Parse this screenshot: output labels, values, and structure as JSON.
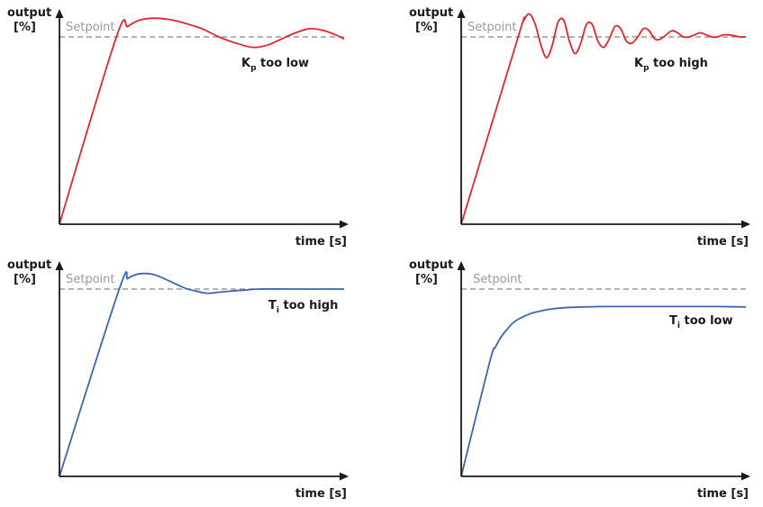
{
  "colors": {
    "axis": "#1a1a1a",
    "setpoint": "#9a9a9a",
    "red_series": "#e8242c",
    "blue_series": "#3a66b5",
    "background": "#ffffff"
  },
  "chart_data": [
    {
      "type": "line",
      "ylabel_line1": "output",
      "ylabel_line2": "[%]",
      "xlabel": "time [s]",
      "setpoint_label": "Setpoint",
      "annotation_main": "K",
      "annotation_sub": "p",
      "annotation_rest": " too low",
      "setpoint": 90,
      "ylim": [
        0,
        105
      ],
      "xlim": [
        0,
        100
      ],
      "series": [
        {
          "color": "red",
          "x": [
            0,
            20,
            24,
            28,
            33,
            38,
            43,
            50,
            56,
            62,
            68,
            73,
            78,
            83,
            88,
            93,
            97,
            100
          ],
          "y": [
            0,
            90,
            95,
            98,
            99,
            98.5,
            97,
            94,
            90,
            87,
            85,
            86,
            89,
            92,
            94,
            93,
            91,
            89
          ]
        }
      ]
    },
    {
      "type": "line",
      "ylabel_line1": "output",
      "ylabel_line2": "[%]",
      "xlabel": "time [s]",
      "setpoint_label": "Setpoint",
      "annotation_main": "K",
      "annotation_sub": "p",
      "annotation_rest": " too high",
      "setpoint": 90,
      "ylim": [
        0,
        105
      ],
      "xlim": [
        0,
        100
      ],
      "series": [
        {
          "color": "red",
          "x": [
            0,
            20,
            22,
            24,
            26,
            28,
            30,
            32,
            34,
            36,
            38,
            40,
            42,
            44,
            46,
            48,
            50,
            52,
            54,
            56,
            58,
            60,
            62,
            64,
            66,
            68,
            70,
            72,
            74,
            76,
            78,
            80,
            82,
            84,
            86,
            88,
            90,
            92,
            94,
            96,
            98,
            100
          ],
          "y": [
            0,
            90,
            98,
            101,
            96,
            86,
            80,
            86,
            97,
            98,
            88,
            82,
            87,
            96,
            96,
            88,
            85,
            89,
            95,
            94,
            88,
            87,
            90,
            94,
            93,
            89,
            89,
            91,
            93,
            92,
            90,
            90,
            91,
            92,
            91,
            90,
            90,
            91,
            91,
            90.5,
            90,
            90
          ]
        }
      ]
    },
    {
      "type": "line",
      "ylabel_line1": "output",
      "ylabel_line2": "[%]",
      "xlabel": "time [s]",
      "setpoint_label": "Setpoint",
      "annotation_main": "T",
      "annotation_sub": "i",
      "annotation_rest": " too high",
      "setpoint": 90,
      "ylim": [
        0,
        105
      ],
      "xlim": [
        0,
        100
      ],
      "series": [
        {
          "color": "blue",
          "x": [
            0,
            21,
            24,
            27,
            30,
            33,
            36,
            40,
            44,
            48,
            52,
            56,
            60,
            65,
            70,
            80,
            90,
            100
          ],
          "y": [
            0,
            90,
            95,
            97,
            97.5,
            97,
            95.5,
            93,
            90.5,
            89,
            88,
            88.5,
            89,
            89.5,
            90,
            90,
            90,
            90
          ]
        }
      ]
    },
    {
      "type": "line",
      "ylabel_line1": "output",
      "ylabel_line2": "[%]",
      "xlabel": "time [s]",
      "setpoint_label": "Setpoint",
      "annotation_main": "T",
      "annotation_sub": "i",
      "annotation_rest": " too low",
      "setpoint": 90,
      "ylim": [
        0,
        105
      ],
      "xlim": [
        0,
        100
      ],
      "series": [
        {
          "color": "blue",
          "x": [
            0,
            10,
            12,
            14,
            16,
            18,
            20,
            24,
            28,
            32,
            36,
            40,
            46,
            52,
            60,
            70,
            80,
            90,
            100
          ],
          "y": [
            0,
            55,
            62,
            67,
            70.5,
            73.5,
            75.5,
            78,
            79.5,
            80.5,
            81,
            81.3,
            81.5,
            81.6,
            81.6,
            81.6,
            81.6,
            81.6,
            81.4
          ]
        }
      ]
    }
  ]
}
